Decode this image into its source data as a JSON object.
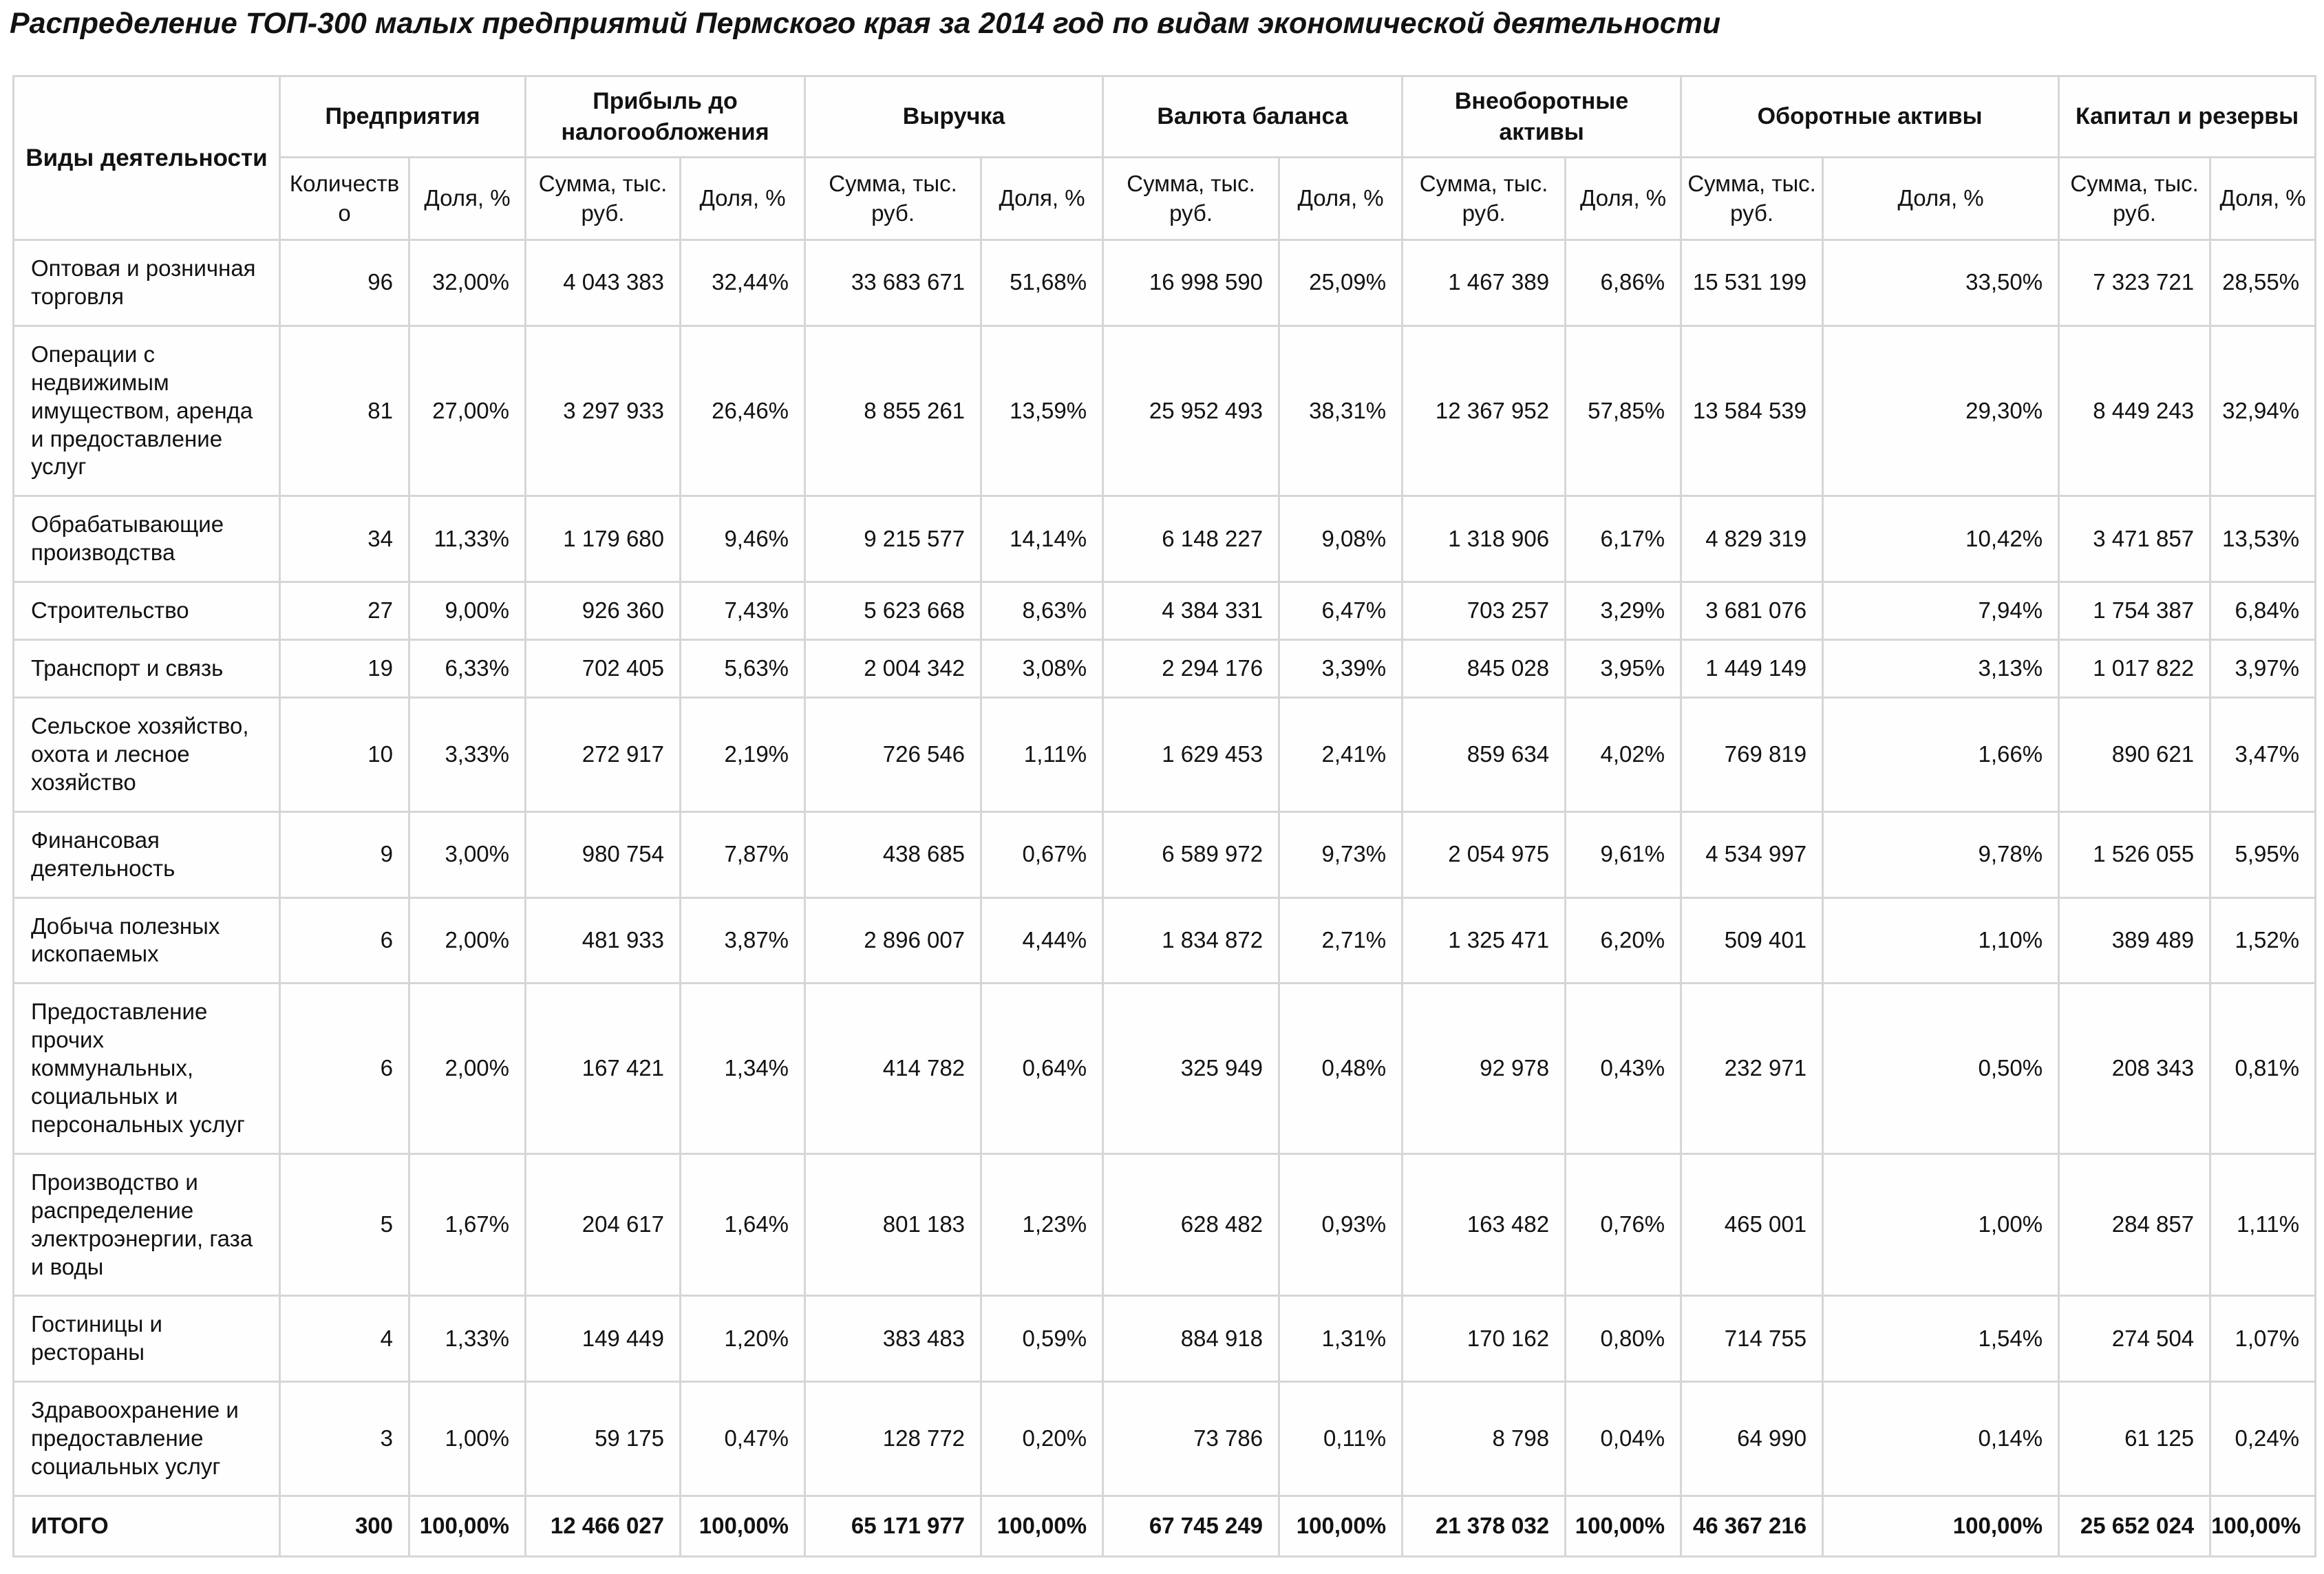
{
  "title": "Распределение ТОП-300 малых предприятий Пермского края за 2014 год по видам экономической деятельности",
  "table": {
    "col1_header": "Виды деятельности",
    "groups": [
      {
        "label": "Предприятия",
        "sub": [
          "Количество",
          "Доля, %"
        ]
      },
      {
        "label": "Прибыль до налогообложения",
        "sub": [
          "Сумма, тыс. руб.",
          "Доля, %"
        ]
      },
      {
        "label": "Выручка",
        "sub": [
          "Сумма, тыс. руб.",
          "Доля, %"
        ]
      },
      {
        "label": "Валюта баланса",
        "sub": [
          "Сумма, тыс. руб.",
          "Доля, %"
        ]
      },
      {
        "label": "Внеоборотные активы",
        "sub": [
          "Сумма, тыс. руб.",
          "Доля, %"
        ]
      },
      {
        "label": "Оборотные активы",
        "sub": [
          "Сумма, тыс. руб.",
          "Доля, %"
        ]
      },
      {
        "label": "Капитал и резервы",
        "sub": [
          "Сумма, тыс. руб.",
          "Доля, %"
        ]
      }
    ],
    "rows": [
      {
        "activity": "Оптовая и розничная торговля",
        "values": [
          "96",
          "32,00%",
          "4 043 383",
          "32,44%",
          "33 683 671",
          "51,68%",
          "16 998 590",
          "25,09%",
          "1 467 389",
          "6,86%",
          "15 531 199",
          "33,50%",
          "7 323 721",
          "28,55%"
        ]
      },
      {
        "activity": "Операции с недвижимым имуществом, аренда и предоставление услуг",
        "values": [
          "81",
          "27,00%",
          "3 297 933",
          "26,46%",
          "8 855 261",
          "13,59%",
          "25 952 493",
          "38,31%",
          "12 367 952",
          "57,85%",
          "13 584 539",
          "29,30%",
          "8 449 243",
          "32,94%"
        ]
      },
      {
        "activity": "Обрабатывающие производства",
        "values": [
          "34",
          "11,33%",
          "1 179 680",
          "9,46%",
          "9 215 577",
          "14,14%",
          "6 148 227",
          "9,08%",
          "1 318 906",
          "6,17%",
          "4 829 319",
          "10,42%",
          "3 471 857",
          "13,53%"
        ]
      },
      {
        "activity": "Строительство",
        "values": [
          "27",
          "9,00%",
          "926 360",
          "7,43%",
          "5 623 668",
          "8,63%",
          "4 384 331",
          "6,47%",
          "703 257",
          "3,29%",
          "3 681 076",
          "7,94%",
          "1 754 387",
          "6,84%"
        ]
      },
      {
        "activity": "Транспорт и связь",
        "values": [
          "19",
          "6,33%",
          "702 405",
          "5,63%",
          "2 004 342",
          "3,08%",
          "2 294 176",
          "3,39%",
          "845 028",
          "3,95%",
          "1 449 149",
          "3,13%",
          "1 017 822",
          "3,97%"
        ]
      },
      {
        "activity": "Сельское хозяйство, охота и лесное хозяйство",
        "values": [
          "10",
          "3,33%",
          "272 917",
          "2,19%",
          "726 546",
          "1,11%",
          "1 629 453",
          "2,41%",
          "859 634",
          "4,02%",
          "769 819",
          "1,66%",
          "890 621",
          "3,47%"
        ]
      },
      {
        "activity": "Финансовая деятельность",
        "values": [
          "9",
          "3,00%",
          "980 754",
          "7,87%",
          "438 685",
          "0,67%",
          "6 589 972",
          "9,73%",
          "2 054 975",
          "9,61%",
          "4 534 997",
          "9,78%",
          "1 526 055",
          "5,95%"
        ]
      },
      {
        "activity": "Добыча полезных ископаемых",
        "values": [
          "6",
          "2,00%",
          "481 933",
          "3,87%",
          "2 896 007",
          "4,44%",
          "1 834 872",
          "2,71%",
          "1 325 471",
          "6,20%",
          "509 401",
          "1,10%",
          "389 489",
          "1,52%"
        ]
      },
      {
        "activity": "Предоставление прочих коммунальных, социальных и персональных услуг",
        "values": [
          "6",
          "2,00%",
          "167 421",
          "1,34%",
          "414 782",
          "0,64%",
          "325 949",
          "0,48%",
          "92 978",
          "0,43%",
          "232 971",
          "0,50%",
          "208 343",
          "0,81%"
        ]
      },
      {
        "activity": "Производство и распределение электроэнергии, газа и воды",
        "values": [
          "5",
          "1,67%",
          "204 617",
          "1,64%",
          "801 183",
          "1,23%",
          "628 482",
          "0,93%",
          "163 482",
          "0,76%",
          "465 001",
          "1,00%",
          "284 857",
          "1,11%"
        ]
      },
      {
        "activity": "Гостиницы и рестораны",
        "values": [
          "4",
          "1,33%",
          "149 449",
          "1,20%",
          "383 483",
          "0,59%",
          "884 918",
          "1,31%",
          "170 162",
          "0,80%",
          "714 755",
          "1,54%",
          "274 504",
          "1,07%"
        ]
      },
      {
        "activity": "Здравоохранение и предоставление социальных услуг",
        "values": [
          "3",
          "1,00%",
          "59 175",
          "0,47%",
          "128 772",
          "0,20%",
          "73 786",
          "0,11%",
          "8 798",
          "0,04%",
          "64 990",
          "0,14%",
          "61 125",
          "0,24%"
        ]
      }
    ],
    "total": {
      "activity": "ИТОГО",
      "values": [
        "300",
        "100,00%",
        "12 466 027",
        "100,00%",
        "65 171 977",
        "100,00%",
        "67 745 249",
        "100,00%",
        "21 378 032",
        "100,00%",
        "46 367 216",
        "100,00%",
        "25 652 024",
        "100,00%"
      ]
    }
  }
}
